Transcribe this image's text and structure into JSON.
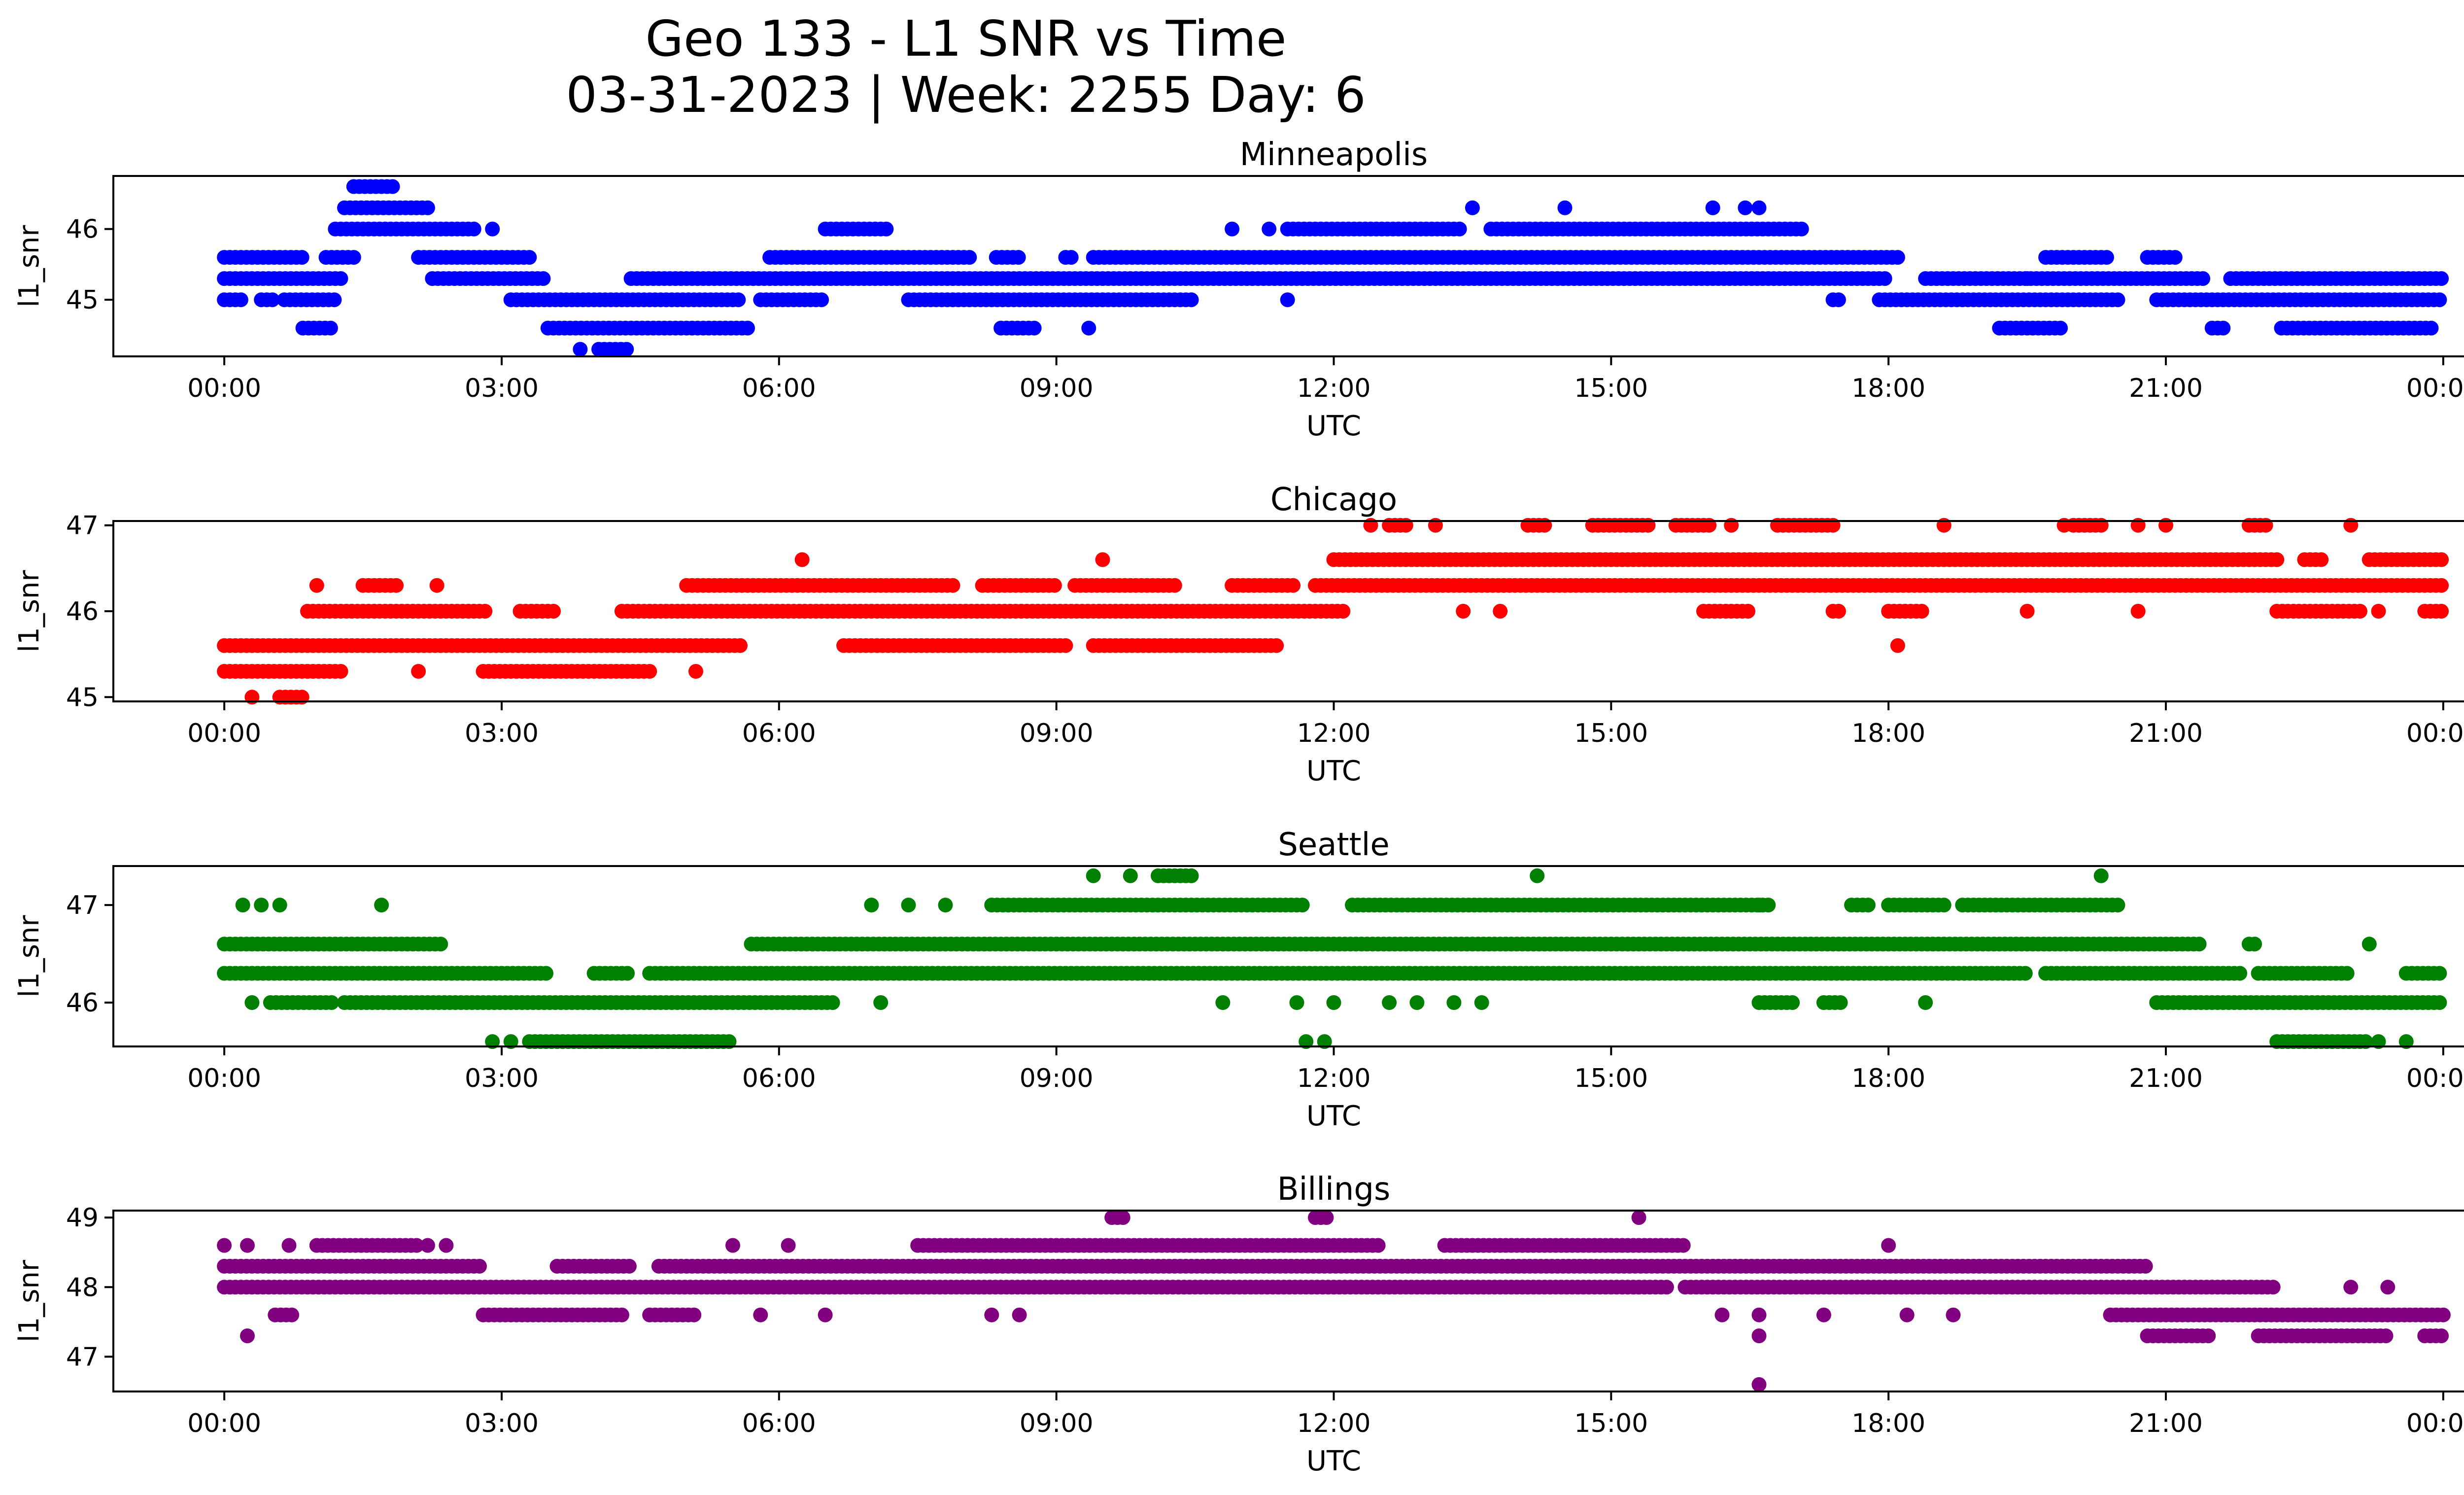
{
  "figure": {
    "title_line1": "Geo 133 - L1 SNR vs Time",
    "title_line2": "03-31-2023 | Week: 2255 Day: 6"
  },
  "chart_data": [
    {
      "type": "scatter",
      "title": "Minneapolis",
      "xlabel": "UTC",
      "ylabel": "l1_snr",
      "color": "#0000ff",
      "xlim": [
        -1.2,
        25.2
      ],
      "ylim": [
        44.2,
        46.75
      ],
      "xticks": [
        0,
        3,
        6,
        9,
        12,
        15,
        18,
        21,
        24
      ],
      "xtick_labels": [
        "00:00",
        "03:00",
        "06:00",
        "09:00",
        "12:00",
        "15:00",
        "18:00",
        "21:00",
        "00:00"
      ],
      "yticks": [
        45,
        46
      ],
      "ytick_labels": [
        "45",
        "46"
      ],
      "series": [
        {
          "y": 45.6,
          "segments": [
            [
              0,
              0.85
            ],
            [
              1.1,
              1.45
            ],
            [
              2.1,
              3.3
            ],
            [
              5.9,
              8.1
            ],
            [
              8.35,
              8.6
            ],
            [
              9.1,
              9.2
            ],
            [
              9.4,
              18.1
            ],
            [
              19.7,
              20.4
            ],
            [
              20.8,
              21.1
            ]
          ]
        },
        {
          "y": 45.3,
          "segments": [
            [
              0,
              1.3
            ],
            [
              2.25,
              3.5
            ],
            [
              4.4,
              18.0
            ],
            [
              18.4,
              21.4
            ],
            [
              21.7,
              24
            ]
          ]
        },
        {
          "y": 45.0,
          "segments": [
            [
              0,
              0.2
            ],
            [
              0.4,
              0.55
            ],
            [
              0.65,
              1.2
            ],
            [
              3.1,
              5.6
            ],
            [
              5.8,
              6.5
            ],
            [
              7.4,
              10.5
            ],
            [
              17.4,
              17.5
            ],
            [
              17.9,
              20.5
            ],
            [
              20.9,
              24
            ]
          ]
        },
        {
          "y": 46.0,
          "segments": [
            [
              1.2,
              2.7
            ],
            [
              6.5,
              7.2
            ],
            [
              11.5,
              13.4
            ],
            [
              13.7,
              17.1
            ]
          ]
        },
        {
          "y": 46.3,
          "segments": [
            [
              1.3,
              2.2
            ]
          ]
        },
        {
          "y": 46.6,
          "segments": [
            [
              1.4,
              1.85
            ]
          ]
        },
        {
          "y": 44.6,
          "segments": [
            [
              0.85,
              1.15
            ],
            [
              3.5,
              5.7
            ],
            [
              8.4,
              8.8
            ],
            [
              19.2,
              19.9
            ],
            [
              21.5,
              21.65
            ],
            [
              22.25,
              23.9
            ]
          ]
        },
        {
          "y": 44.3,
          "segments": [
            [
              4.05,
              4.4
            ]
          ]
        }
      ],
      "points": [
        {
          "x": 3.85,
          "y": 44.3
        },
        {
          "x": 9.35,
          "y": 44.6
        },
        {
          "x": 10.9,
          "y": 46.0
        },
        {
          "x": 11.3,
          "y": 46.0
        },
        {
          "x": 11.5,
          "y": 45.0
        },
        {
          "x": 2.9,
          "y": 46.0
        },
        {
          "x": 13.5,
          "y": 46.3
        },
        {
          "x": 14.5,
          "y": 46.3
        },
        {
          "x": 16.1,
          "y": 46.3
        },
        {
          "x": 16.45,
          "y": 46.3
        },
        {
          "x": 16.6,
          "y": 46.3
        },
        {
          "x": 19.5,
          "y": 45.3
        }
      ]
    },
    {
      "type": "scatter",
      "title": "Chicago",
      "xlabel": "UTC",
      "ylabel": "l1_snr",
      "color": "#ff0000",
      "xlim": [
        -1.2,
        25.2
      ],
      "ylim": [
        44.95,
        47.05
      ],
      "xticks": [
        0,
        3,
        6,
        9,
        12,
        15,
        18,
        21,
        24
      ],
      "xtick_labels": [
        "00:00",
        "03:00",
        "06:00",
        "09:00",
        "12:00",
        "15:00",
        "18:00",
        "21:00",
        "00:00"
      ],
      "yticks": [
        45,
        46,
        47
      ],
      "ytick_labels": [
        "45",
        "46",
        "47"
      ],
      "series": [
        {
          "y": 45.6,
          "segments": [
            [
              0,
              5.6
            ],
            [
              6.7,
              9.1
            ],
            [
              9.4,
              11.4
            ]
          ]
        },
        {
          "y": 45.3,
          "segments": [
            [
              0,
              1.3
            ],
            [
              2.8,
              4.6
            ]
          ]
        },
        {
          "y": 45.0,
          "segments": [
            [
              0.6,
              0.85
            ]
          ]
        },
        {
          "y": 46.0,
          "segments": [
            [
              0.9,
              2.85
            ],
            [
              3.2,
              3.6
            ],
            [
              4.3,
              12.1
            ],
            [
              16.0,
              16.5
            ],
            [
              17.4,
              17.5
            ],
            [
              18.0,
              18.4
            ],
            [
              22.2,
              23.1
            ],
            [
              23.8,
              24
            ]
          ]
        },
        {
          "y": 46.3,
          "segments": [
            [
              1.5,
              1.9
            ],
            [
              5.0,
              7.9
            ],
            [
              8.2,
              9.0
            ],
            [
              9.2,
              10.3
            ],
            [
              10.9,
              11.6
            ],
            [
              11.8,
              24
            ]
          ]
        },
        {
          "y": 46.6,
          "segments": [
            [
              12.0,
              22.2
            ],
            [
              22.5,
              22.7
            ],
            [
              23.2,
              24
            ]
          ]
        },
        {
          "y": 47.0,
          "segments": [
            [
              12.6,
              12.8
            ],
            [
              14.1,
              14.3
            ],
            [
              14.8,
              15.4
            ],
            [
              15.7,
              16.1
            ],
            [
              16.8,
              17.4
            ],
            [
              20.0,
              20.3
            ],
            [
              21.9,
              22.1
            ]
          ]
        }
      ],
      "points": [
        {
          "x": 0.3,
          "y": 45.0
        },
        {
          "x": 1.0,
          "y": 46.3
        },
        {
          "x": 2.3,
          "y": 46.3
        },
        {
          "x": 2.1,
          "y": 45.3
        },
        {
          "x": 5.1,
          "y": 45.3
        },
        {
          "x": 6.25,
          "y": 46.6
        },
        {
          "x": 9.5,
          "y": 46.6
        },
        {
          "x": 12.4,
          "y": 47.0
        },
        {
          "x": 13.1,
          "y": 47.0
        },
        {
          "x": 13.4,
          "y": 46.0
        },
        {
          "x": 13.8,
          "y": 46.0
        },
        {
          "x": 16.3,
          "y": 47.0
        },
        {
          "x": 18.1,
          "y": 45.6
        },
        {
          "x": 18.6,
          "y": 47.0
        },
        {
          "x": 19.5,
          "y": 46.0
        },
        {
          "x": 19.9,
          "y": 47.0
        },
        {
          "x": 20.7,
          "y": 47.0
        },
        {
          "x": 21.0,
          "y": 47.0
        },
        {
          "x": 20.7,
          "y": 46.0
        },
        {
          "x": 23.0,
          "y": 47.0
        },
        {
          "x": 23.3,
          "y": 46.0
        }
      ]
    },
    {
      "type": "scatter",
      "title": "Seattle",
      "xlabel": "UTC",
      "ylabel": "l1_snr",
      "color": "#008000",
      "xlim": [
        -1.2,
        25.2
      ],
      "ylim": [
        45.55,
        47.4
      ],
      "xticks": [
        0,
        3,
        6,
        9,
        12,
        15,
        18,
        21,
        24
      ],
      "xtick_labels": [
        "00:00",
        "03:00",
        "06:00",
        "09:00",
        "12:00",
        "15:00",
        "18:00",
        "21:00",
        "00:00"
      ],
      "yticks": [
        46,
        47
      ],
      "ytick_labels": [
        "46",
        "47"
      ],
      "series": [
        {
          "y": 46.6,
          "segments": [
            [
              0,
              2.35
            ],
            [
              5.7,
              21.4
            ],
            [
              21.9,
              22.0
            ]
          ]
        },
        {
          "y": 46.3,
          "segments": [
            [
              0,
              3.5
            ],
            [
              4.0,
              4.4
            ],
            [
              4.6,
              19.5
            ],
            [
              19.7,
              21.8
            ],
            [
              22.0,
              23.0
            ],
            [
              23.6,
              24
            ]
          ]
        },
        {
          "y": 46.0,
          "segments": [
            [
              0.5,
              1.2
            ],
            [
              1.3,
              6.6
            ],
            [
              16.6,
              17.0
            ],
            [
              17.3,
              17.5
            ],
            [
              20.9,
              24
            ]
          ]
        },
        {
          "y": 47.0,
          "segments": [
            [
              8.3,
              11.7
            ],
            [
              12.2,
              16.7
            ],
            [
              17.6,
              17.8
            ],
            [
              18.0,
              18.6
            ],
            [
              18.8,
              20.5
            ]
          ]
        },
        {
          "y": 45.6,
          "segments": [
            [
              3.3,
              5.5
            ],
            [
              22.2,
              23.2
            ]
          ]
        },
        {
          "y": 47.3,
          "segments": [
            [
              10.1,
              10.5
            ]
          ]
        }
      ],
      "points": [
        {
          "x": 0.2,
          "y": 47.0
        },
        {
          "x": 0.4,
          "y": 47.0
        },
        {
          "x": 0.6,
          "y": 47.0
        },
        {
          "x": 1.7,
          "y": 47.0
        },
        {
          "x": 0.3,
          "y": 46.0
        },
        {
          "x": 2.9,
          "y": 45.6
        },
        {
          "x": 3.1,
          "y": 45.6
        },
        {
          "x": 7.0,
          "y": 47.0
        },
        {
          "x": 7.4,
          "y": 47.0
        },
        {
          "x": 7.8,
          "y": 47.0
        },
        {
          "x": 7.1,
          "y": 46.0
        },
        {
          "x": 9.4,
          "y": 47.3
        },
        {
          "x": 9.8,
          "y": 47.3
        },
        {
          "x": 10.8,
          "y": 46.0
        },
        {
          "x": 11.6,
          "y": 46.0
        },
        {
          "x": 12.0,
          "y": 46.0
        },
        {
          "x": 11.7,
          "y": 45.6
        },
        {
          "x": 11.9,
          "y": 45.6
        },
        {
          "x": 12.6,
          "y": 46.0
        },
        {
          "x": 12.9,
          "y": 46.0
        },
        {
          "x": 13.3,
          "y": 46.0
        },
        {
          "x": 13.6,
          "y": 46.0
        },
        {
          "x": 14.2,
          "y": 47.3
        },
        {
          "x": 16.6,
          "y": 47.0
        },
        {
          "x": 18.4,
          "y": 46.0
        },
        {
          "x": 20.3,
          "y": 47.3
        },
        {
          "x": 23.3,
          "y": 45.6
        },
        {
          "x": 23.6,
          "y": 45.6
        },
        {
          "x": 23.2,
          "y": 46.6
        }
      ]
    },
    {
      "type": "scatter",
      "title": "Billings",
      "xlabel": "UTC",
      "ylabel": "l1_snr",
      "color": "#800080",
      "xlim": [
        -1.2,
        25.2
      ],
      "ylim": [
        46.5,
        49.1
      ],
      "xticks": [
        0,
        3,
        6,
        9,
        12,
        15,
        18,
        21,
        24
      ],
      "xtick_labels": [
        "00:00",
        "03:00",
        "06:00",
        "09:00",
        "12:00",
        "15:00",
        "18:00",
        "21:00",
        "00:00"
      ],
      "yticks": [
        47,
        48,
        49
      ],
      "ytick_labels": [
        "47",
        "48",
        "49"
      ],
      "series": [
        {
          "y": 48.3,
          "segments": [
            [
              0,
              2.8
            ],
            [
              3.6,
              4.4
            ],
            [
              4.7,
              20.8
            ]
          ]
        },
        {
          "y": 48.0,
          "segments": [
            [
              0,
              15.6
            ],
            [
              15.8,
              22.2
            ]
          ]
        },
        {
          "y": 48.6,
          "segments": [
            [
              1.0,
              2.1
            ],
            [
              7.5,
              12.5
            ],
            [
              13.2,
              15.8
            ]
          ]
        },
        {
          "y": 47.6,
          "segments": [
            [
              0.55,
              0.75
            ],
            [
              2.8,
              4.3
            ],
            [
              4.6,
              5.1
            ],
            [
              20.4,
              24
            ]
          ]
        },
        {
          "y": 47.3,
          "segments": [
            [
              20.8,
              21.5
            ],
            [
              22.0,
              23.4
            ],
            [
              23.8,
              24
            ]
          ]
        },
        {
          "y": 49.0,
          "segments": [
            [
              9.6,
              9.75
            ],
            [
              11.8,
              11.95
            ]
          ]
        }
      ],
      "points": [
        {
          "x": 0.25,
          "y": 47.3
        },
        {
          "x": 0.0,
          "y": 48.6
        },
        {
          "x": 0.25,
          "y": 48.6
        },
        {
          "x": 0.7,
          "y": 48.6
        },
        {
          "x": 2.2,
          "y": 48.6
        },
        {
          "x": 2.4,
          "y": 48.6
        },
        {
          "x": 5.5,
          "y": 48.6
        },
        {
          "x": 6.1,
          "y": 48.6
        },
        {
          "x": 5.8,
          "y": 47.6
        },
        {
          "x": 6.5,
          "y": 47.6
        },
        {
          "x": 8.3,
          "y": 47.6
        },
        {
          "x": 8.6,
          "y": 47.6
        },
        {
          "x": 15.3,
          "y": 49.0
        },
        {
          "x": 16.2,
          "y": 47.6
        },
        {
          "x": 16.6,
          "y": 47.6
        },
        {
          "x": 16.6,
          "y": 47.3
        },
        {
          "x": 16.6,
          "y": 46.6
        },
        {
          "x": 17.3,
          "y": 47.6
        },
        {
          "x": 18.0,
          "y": 48.6
        },
        {
          "x": 18.2,
          "y": 47.6
        },
        {
          "x": 18.7,
          "y": 47.6
        },
        {
          "x": 23.0,
          "y": 48.0
        },
        {
          "x": 23.4,
          "y": 48.0
        }
      ]
    }
  ]
}
